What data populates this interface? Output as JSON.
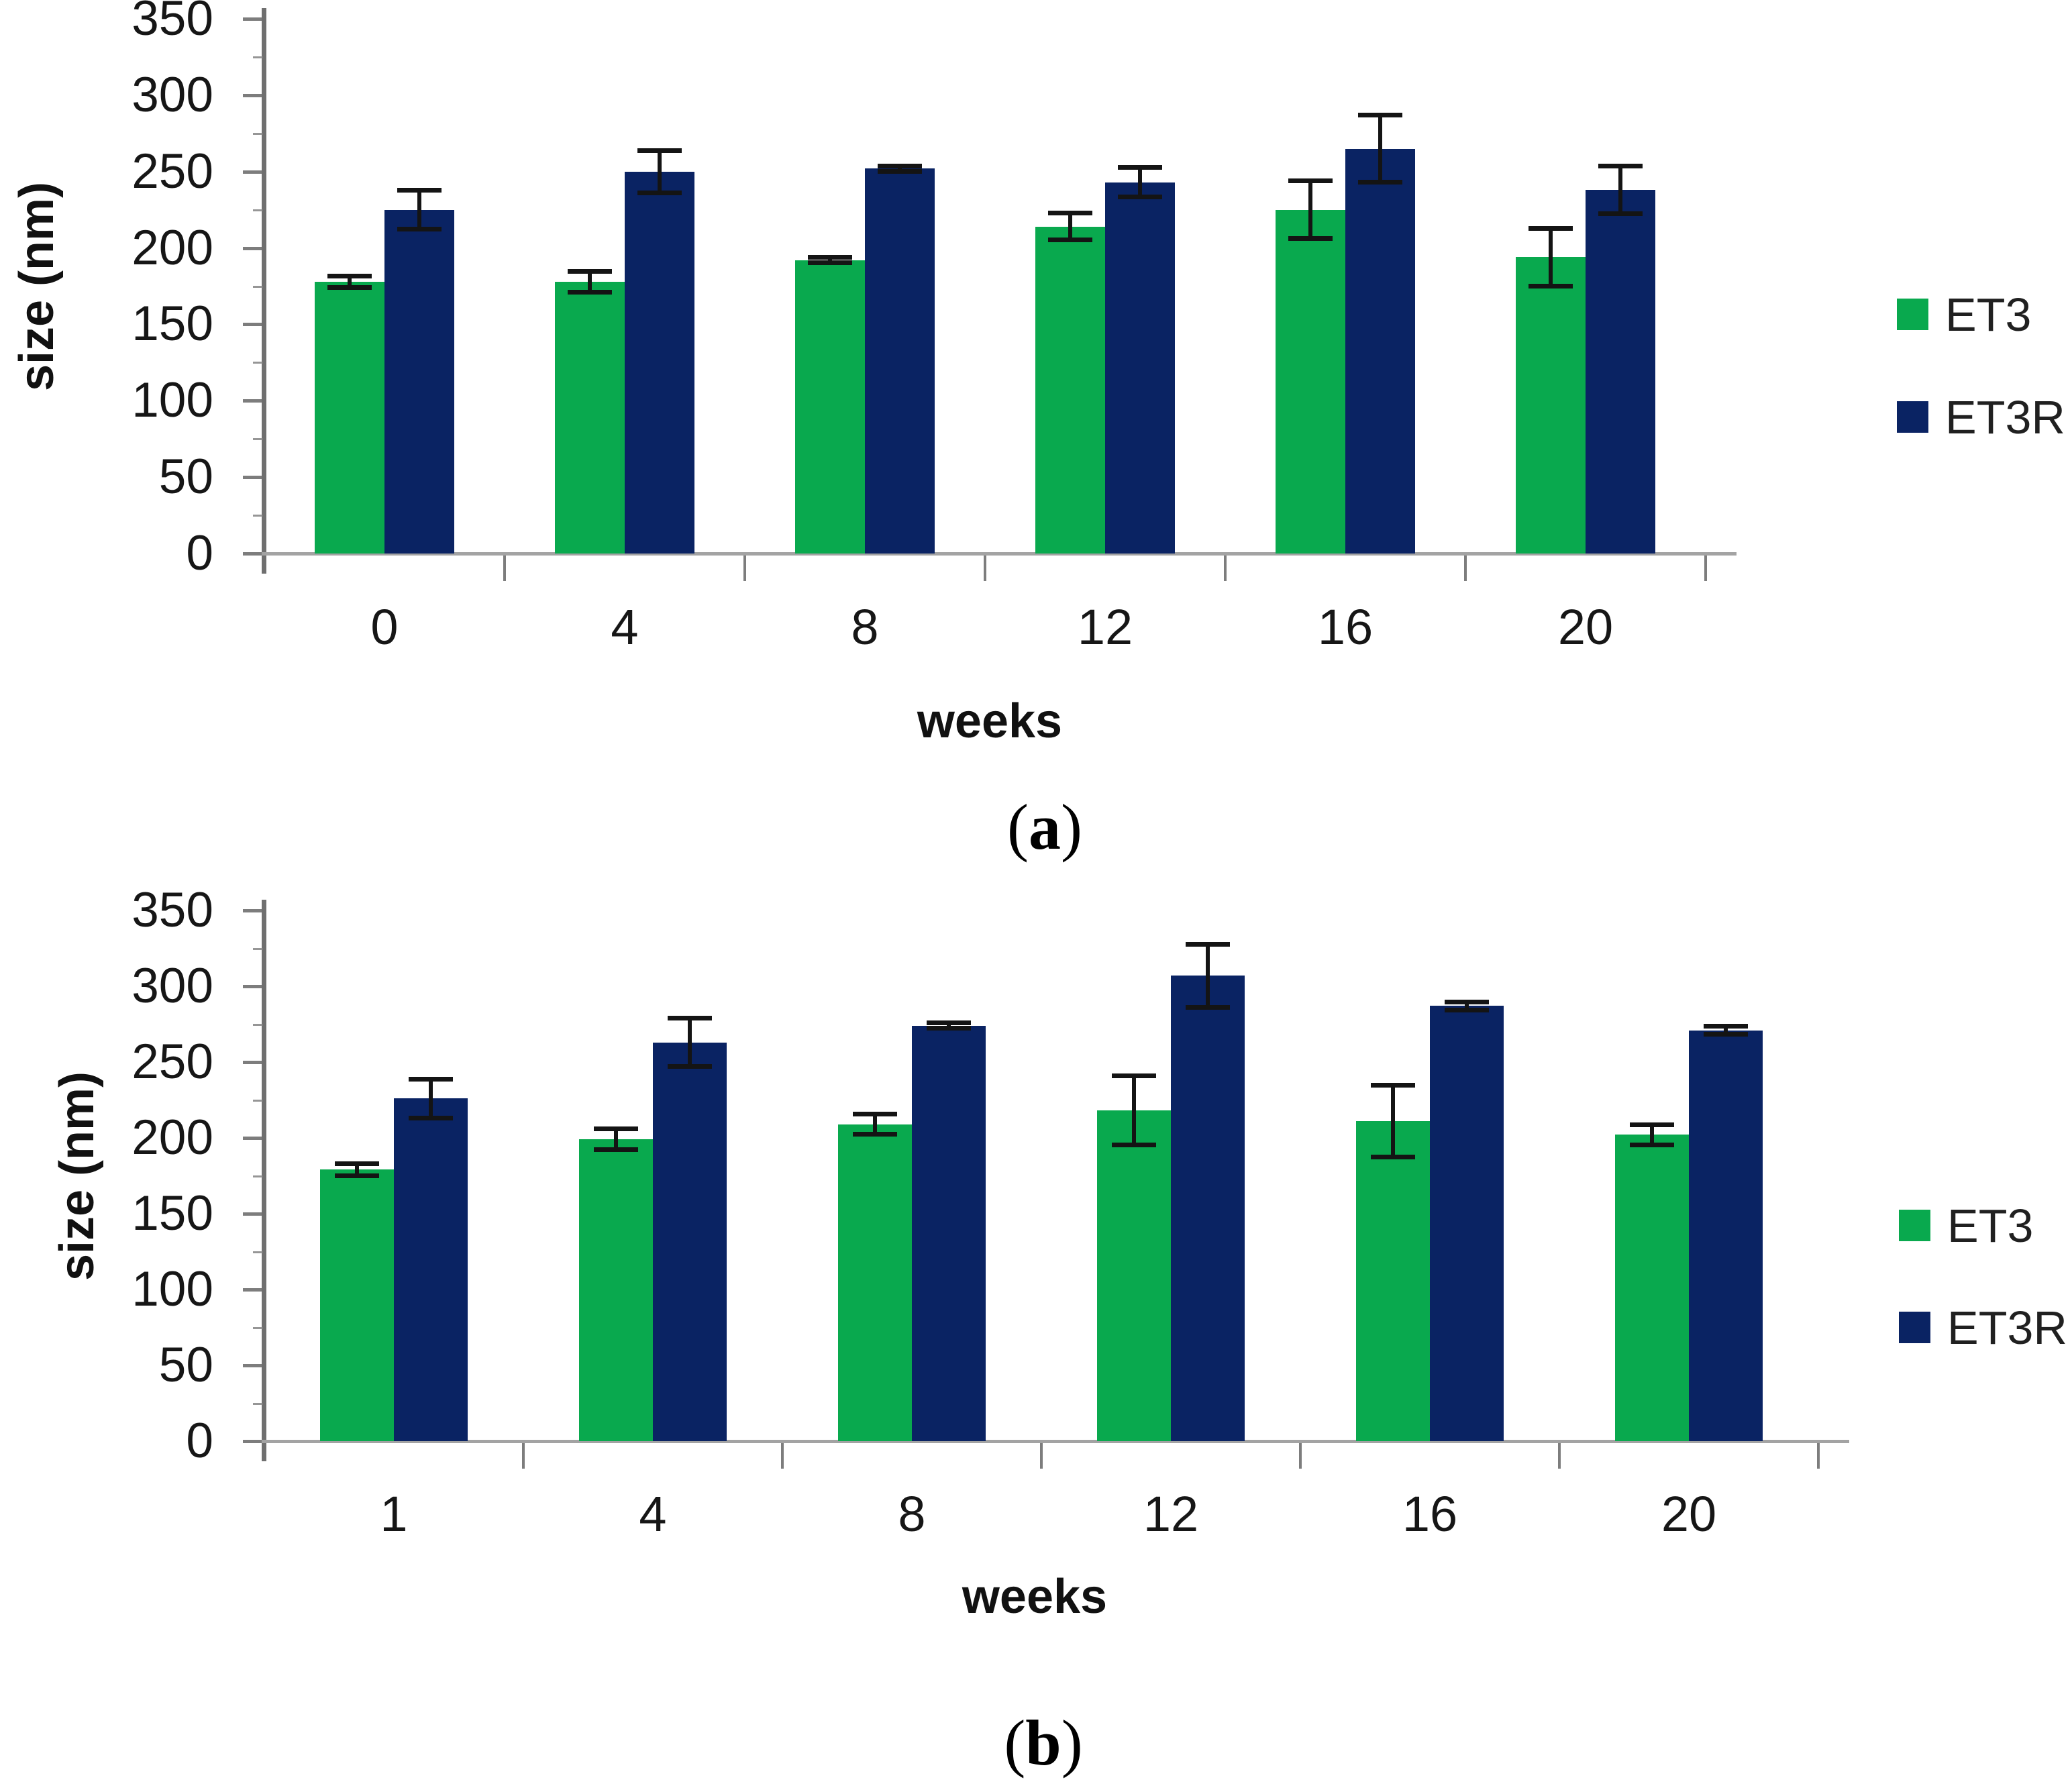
{
  "figure_title": "",
  "palette": {
    "et3": "#09A94E",
    "et3r": "#0A2363",
    "error": "#141414",
    "axis": "#6F6F6F",
    "baseline": "#A3A3A3",
    "tick": "#7D7D7D"
  },
  "chart_data": [
    {
      "id": "a",
      "type": "bar",
      "title": "",
      "caption": "(a)",
      "xlabel": "weeks",
      "ylabel": "size (nm)",
      "ylim": [
        0,
        350
      ],
      "ytick_step": 50,
      "yticks": [
        "0",
        "50",
        "100",
        "150",
        "200",
        "250",
        "300",
        "350"
      ],
      "categories": [
        "0",
        "4",
        "8",
        "12",
        "16",
        "20"
      ],
      "grid": false,
      "legend_position": "right",
      "series": [
        {
          "name": "ET3",
          "color": "#09A94E",
          "values": [
            178,
            178,
            192,
            214,
            225,
            194
          ],
          "errors": [
            4,
            7,
            2,
            9,
            19,
            19
          ]
        },
        {
          "name": "ET3R",
          "color": "#0A2363",
          "values": [
            225,
            250,
            252,
            243,
            265,
            238
          ],
          "errors": [
            13,
            14,
            2,
            10,
            22,
            16
          ]
        }
      ]
    },
    {
      "id": "b",
      "type": "bar",
      "title": "",
      "caption": "(b)",
      "xlabel": "weeks",
      "ylabel": "size (nm)",
      "ylim": [
        0,
        350
      ],
      "ytick_step": 50,
      "yticks": [
        "0",
        "50",
        "100",
        "150",
        "200",
        "250",
        "300",
        "350"
      ],
      "categories": [
        "1",
        "4",
        "8",
        "12",
        "16",
        "20"
      ],
      "grid": false,
      "legend_position": "right",
      "series": [
        {
          "name": "ET3",
          "color": "#09A94E",
          "values": [
            179,
            199,
            209,
            218,
            211,
            202
          ],
          "errors": [
            4,
            7,
            7,
            23,
            24,
            7
          ]
        },
        {
          "name": "ET3R",
          "color": "#0A2363",
          "values": [
            226,
            263,
            274,
            307,
            287,
            271
          ],
          "errors": [
            13,
            16,
            2,
            21,
            3,
            3
          ]
        }
      ]
    }
  ]
}
